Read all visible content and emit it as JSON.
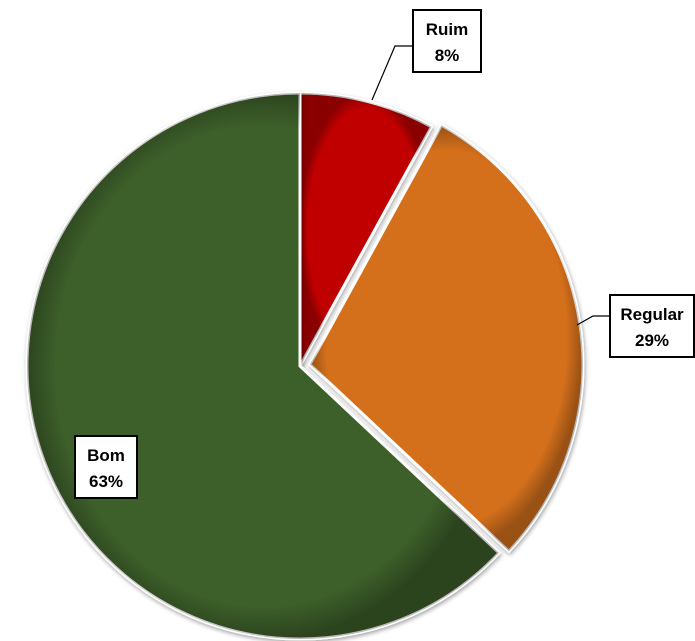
{
  "chart_data": {
    "type": "pie",
    "title": "",
    "slices": [
      {
        "label": "Ruim",
        "value": 8,
        "display": "8%",
        "color": "#c00000"
      },
      {
        "label": "Regular",
        "value": 29,
        "display": "29%",
        "color": "#d46f1a"
      },
      {
        "label": "Bom",
        "value": 63,
        "display": "63%",
        "color": "#3e5f2a"
      }
    ],
    "legend": "none",
    "start_angle": "12 o'clock",
    "direction": "clockwise",
    "exploded": [
      "Regular"
    ]
  }
}
